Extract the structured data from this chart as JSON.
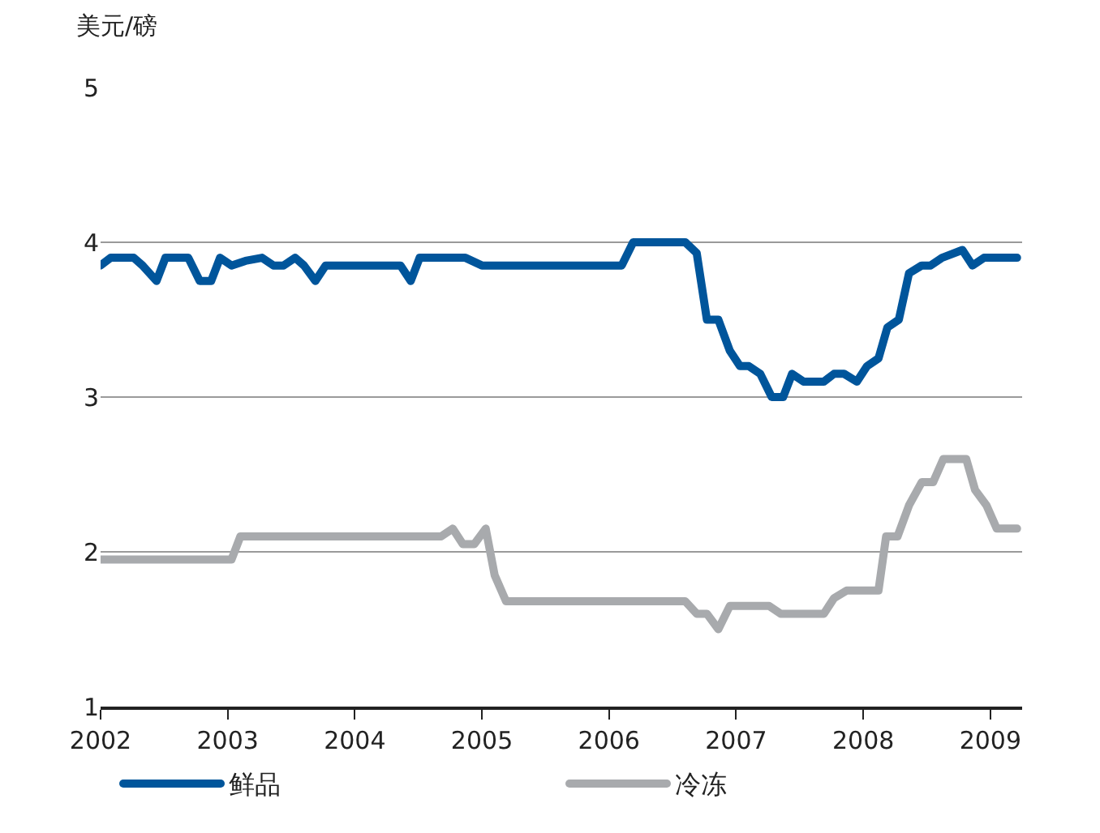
{
  "chart_data": {
    "type": "line",
    "ylabel": "美元/磅",
    "xlim": [
      2002,
      2009.25
    ],
    "xticks": [
      2002,
      2003,
      2004,
      2005,
      2006,
      2007,
      2008,
      2009
    ],
    "ylim": [
      1,
      5
    ],
    "yticks": [
      1,
      2,
      3,
      4,
      5
    ],
    "grid": "y",
    "legend": "bottom",
    "marker": "none",
    "line_style": "solid",
    "series": [
      {
        "name": "鲜品",
        "color": "#00559b",
        "x": [
          2002.0,
          2002.08,
          2002.26,
          2002.33,
          2002.44,
          2002.51,
          2002.69,
          2002.78,
          2002.87,
          2002.94,
          2003.03,
          2003.14,
          2003.27,
          2003.36,
          2003.44,
          2003.53,
          2003.6,
          2003.69,
          2003.77,
          2004.36,
          2004.44,
          2004.51,
          2004.87,
          2005.0,
          2006.1,
          2006.19,
          2006.6,
          2006.69,
          2006.77,
          2006.86,
          2006.95,
          2007.03,
          2007.1,
          2007.19,
          2007.28,
          2007.37,
          2007.44,
          2007.53,
          2007.69,
          2007.77,
          2007.85,
          2007.95,
          2008.03,
          2008.12,
          2008.19,
          2008.28,
          2008.36,
          2008.46,
          2008.53,
          2008.62,
          2008.78,
          2008.86,
          2008.95,
          2009.21
        ],
        "values": [
          3.85,
          3.9,
          3.9,
          3.85,
          3.75,
          3.9,
          3.9,
          3.75,
          3.75,
          3.9,
          3.85,
          3.88,
          3.9,
          3.85,
          3.85,
          3.9,
          3.85,
          3.75,
          3.85,
          3.85,
          3.75,
          3.9,
          3.9,
          3.85,
          3.85,
          4.0,
          4.0,
          3.93,
          3.5,
          3.5,
          3.3,
          3.2,
          3.2,
          3.15,
          3.0,
          3.0,
          3.15,
          3.1,
          3.1,
          3.15,
          3.15,
          3.1,
          3.2,
          3.25,
          3.45,
          3.5,
          3.8,
          3.85,
          3.85,
          3.9,
          3.95,
          3.85,
          3.9,
          3.9
        ]
      },
      {
        "name": "冷冻",
        "color": "#a8aaad",
        "x": [
          2002.0,
          2003.03,
          2003.1,
          2004.68,
          2004.77,
          2004.85,
          2004.94,
          2005.03,
          2005.1,
          2005.19,
          2006.6,
          2006.69,
          2006.77,
          2006.86,
          2006.95,
          2007.26,
          2007.35,
          2007.69,
          2007.77,
          2007.87,
          2008.12,
          2008.18,
          2008.27,
          2008.36,
          2008.46,
          2008.55,
          2008.63,
          2008.81,
          2008.88,
          2008.97,
          2009.05,
          2009.21
        ],
        "values": [
          1.95,
          1.95,
          2.1,
          2.1,
          2.15,
          2.05,
          2.05,
          2.15,
          1.85,
          1.68,
          1.68,
          1.6,
          1.6,
          1.5,
          1.65,
          1.65,
          1.6,
          1.6,
          1.7,
          1.75,
          1.75,
          2.1,
          2.1,
          2.3,
          2.45,
          2.45,
          2.6,
          2.6,
          2.4,
          2.3,
          2.15,
          2.15
        ]
      }
    ]
  }
}
